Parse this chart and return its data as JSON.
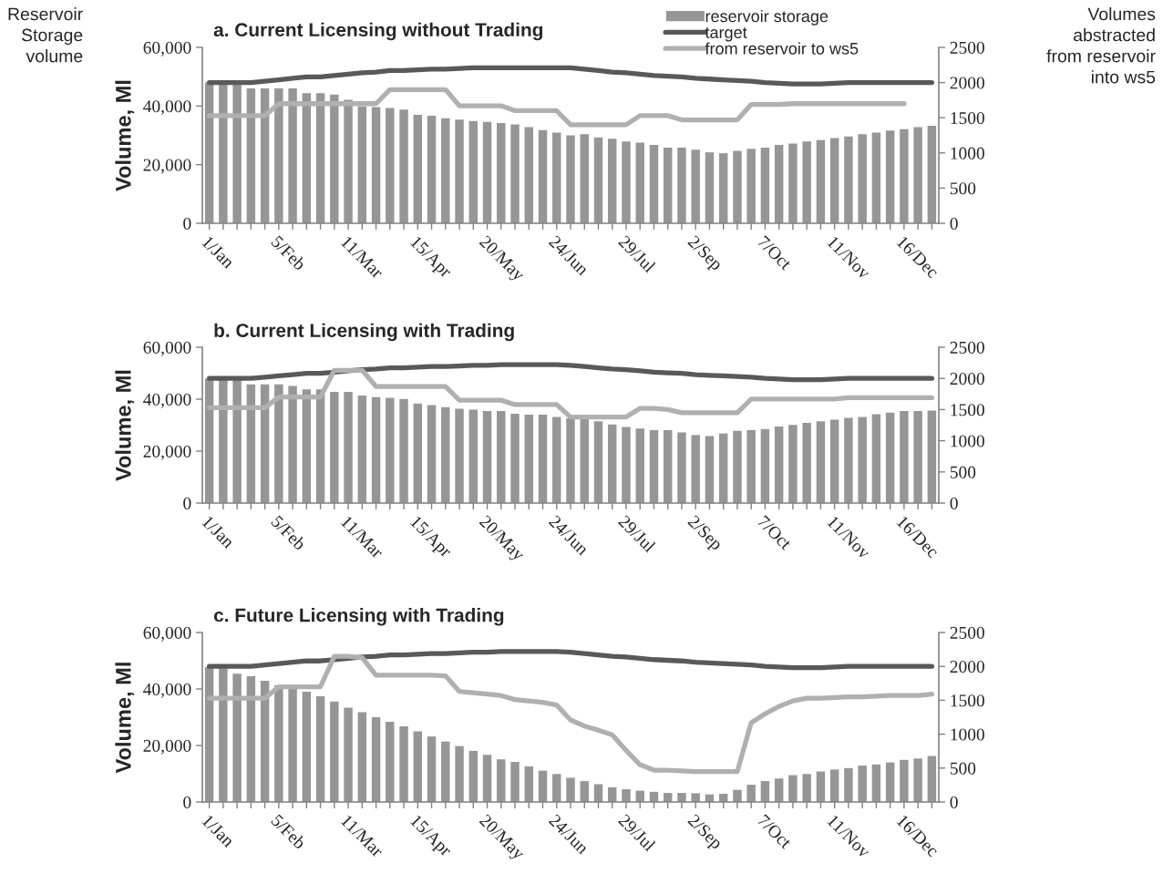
{
  "chart_data": [
    {
      "type": "bar",
      "title": "a. Current Licensing without Trading",
      "ylabel": "Volume, Ml",
      "annotations": [
        "Reservoir\nStorage\nvolume",
        "Volumes\nabstracted\nfrom reservoir\ninto ws5"
      ],
      "categories": [
        "1/Jan",
        null,
        null,
        null,
        null,
        "5/Feb",
        null,
        null,
        null,
        null,
        "11/Mar",
        null,
        null,
        null,
        null,
        "15/Apr",
        null,
        null,
        null,
        null,
        "20/May",
        null,
        null,
        null,
        null,
        "24/Jun",
        null,
        null,
        null,
        null,
        "29/Jul",
        null,
        null,
        null,
        null,
        "2/Sep",
        null,
        null,
        null,
        null,
        "7/Oct",
        null,
        null,
        null,
        null,
        "11/Nov",
        null,
        null,
        null,
        null,
        "16/Dec",
        null,
        null
      ],
      "series": [
        {
          "name": "reservoir storage",
          "color": "#969696",
          "values": [
            48000,
            48000,
            48000,
            46000,
            46000,
            46000,
            46000,
            44400,
            44400,
            43900,
            42100,
            39900,
            39600,
            39300,
            38800,
            37000,
            36700,
            35800,
            35400,
            34900,
            34600,
            34200,
            33700,
            32800,
            31800,
            30900,
            30000,
            30400,
            29300,
            28800,
            27900,
            27500,
            26700,
            25800,
            25800,
            25100,
            24200,
            23900,
            24700,
            25400,
            25800,
            26700,
            27200,
            27900,
            28400,
            29100,
            29600,
            30400,
            30900,
            31600,
            32100,
            32800,
            33300
          ]
        },
        {
          "name": "target",
          "type": "line",
          "axis": "y2",
          "color": "#595959",
          "values": [
            2000,
            2000,
            2000,
            2000,
            2020,
            2040,
            2060,
            2080,
            2080,
            2100,
            2120,
            2140,
            2150,
            2170,
            2170,
            2180,
            2190,
            2190,
            2200,
            2210,
            2210,
            2210,
            2210,
            2210,
            2210,
            2210,
            2210,
            2190,
            2170,
            2150,
            2140,
            2120,
            2100,
            2090,
            2080,
            2060,
            2050,
            2040,
            2030,
            2020,
            2000,
            1990,
            1980,
            1980,
            1980,
            1990,
            2000,
            2000,
            2000,
            2000,
            2000,
            2000,
            2000
          ]
        },
        {
          "name": "from reservoir to ws5",
          "type": "line",
          "axis": "y2",
          "color": "#b0b0b0",
          "values": [
            1530,
            1530,
            1530,
            1530,
            1530,
            1700,
            1700,
            1700,
            1700,
            1700,
            1700,
            1700,
            1700,
            1900,
            1900,
            1900,
            1900,
            1900,
            1670,
            1670,
            1670,
            1670,
            1600,
            1600,
            1600,
            1600,
            1400,
            1400,
            1400,
            1400,
            1400,
            1530,
            1530,
            1530,
            1470,
            1470,
            1470,
            1470,
            1470,
            1690,
            1690,
            1690,
            1700,
            1700,
            1700,
            1700,
            1700,
            1700,
            1700,
            1700,
            1700,
            null,
            null
          ]
        }
      ],
      "ylim": [
        0,
        60000
      ],
      "yticks": [
        0,
        {
          "value": 20000,
          "label": "20,000"
        },
        {
          "value": 40000,
          "label": "40,000"
        },
        {
          "value": 60000,
          "label": "60,000"
        }
      ],
      "y2lim": [
        0,
        2500
      ],
      "y2ticks": [
        0,
        500,
        1000,
        1500,
        2000,
        2500
      ],
      "legend": "top right",
      "grid": false,
      "line_style": "solid",
      "marker": "none"
    },
    {
      "type": "bar",
      "title": "b. Current Licensing with Trading",
      "ylabel": "Volume, Ml",
      "categories": [
        "1/Jan",
        null,
        null,
        null,
        null,
        "5/Feb",
        null,
        null,
        null,
        null,
        "11/Mar",
        null,
        null,
        null,
        null,
        "15/Apr",
        null,
        null,
        null,
        null,
        "20/May",
        null,
        null,
        null,
        null,
        "24/Jun",
        null,
        null,
        null,
        null,
        "29/Jul",
        null,
        null,
        null,
        null,
        "2/Sep",
        null,
        null,
        null,
        null,
        "7/Oct",
        null,
        null,
        null,
        null,
        "11/Nov",
        null,
        null,
        null,
        null,
        "16/Dec",
        null,
        null
      ],
      "series": [
        {
          "color": "#969696",
          "values": [
            48000,
            48000,
            48000,
            45700,
            45700,
            45700,
            45100,
            43800,
            43800,
            42800,
            42800,
            41400,
            40800,
            40500,
            40100,
            38300,
            37700,
            36900,
            36300,
            36000,
            35400,
            35400,
            34400,
            34000,
            34000,
            33200,
            32600,
            32400,
            31500,
            30300,
            29300,
            28700,
            28100,
            28100,
            27200,
            26200,
            25800,
            26800,
            27800,
            28100,
            28500,
            29500,
            30100,
            30900,
            31500,
            32100,
            32800,
            33200,
            34200,
            34800,
            35400,
            35400,
            35600
          ]
        },
        {
          "type": "line",
          "axis": "y2",
          "color": "#595959",
          "values": [
            2000,
            2000,
            2000,
            2000,
            2020,
            2040,
            2060,
            2080,
            2080,
            2100,
            2120,
            2140,
            2150,
            2170,
            2170,
            2180,
            2190,
            2190,
            2200,
            2210,
            2210,
            2220,
            2220,
            2220,
            2220,
            2220,
            2210,
            2190,
            2170,
            2150,
            2140,
            2120,
            2100,
            2090,
            2080,
            2060,
            2050,
            2040,
            2030,
            2020,
            2000,
            1990,
            1980,
            1980,
            1980,
            1990,
            2000,
            2000,
            2000,
            2000,
            2000,
            2000,
            2000
          ]
        },
        {
          "type": "line",
          "axis": "y2",
          "color": "#b0b0b0",
          "values": [
            1530,
            1530,
            1530,
            1530,
            1530,
            1700,
            1700,
            1700,
            1700,
            2130,
            2130,
            2130,
            1870,
            1870,
            1870,
            1870,
            1870,
            1870,
            1650,
            1650,
            1650,
            1650,
            1580,
            1580,
            1580,
            1580,
            1380,
            1380,
            1380,
            1380,
            1380,
            1520,
            1520,
            1500,
            1450,
            1450,
            1450,
            1450,
            1450,
            1670,
            1670,
            1670,
            1670,
            1670,
            1670,
            1670,
            1690,
            1690,
            1690,
            1690,
            1690,
            1690,
            1690
          ]
        }
      ],
      "ylim": [
        0,
        60000
      ],
      "yticks": [
        0,
        {
          "value": 20000,
          "label": "20,000"
        },
        {
          "value": 40000,
          "label": "40,000"
        },
        {
          "value": 60000,
          "label": "60,000"
        }
      ],
      "y2lim": [
        0,
        2500
      ],
      "y2ticks": [
        0,
        500,
        1000,
        1500,
        2000,
        2500
      ],
      "grid": false,
      "line_style": "solid",
      "marker": "none"
    },
    {
      "type": "bar",
      "title": "c. Future Licensing with Trading",
      "ylabel": "Volume, Ml",
      "categories": [
        "1/Jan",
        null,
        null,
        null,
        null,
        "5/Feb",
        null,
        null,
        null,
        null,
        "11/Mar",
        null,
        null,
        null,
        null,
        "15/Apr",
        null,
        null,
        null,
        null,
        "20/May",
        null,
        null,
        null,
        null,
        "24/Jun",
        null,
        null,
        null,
        null,
        "29/Jul",
        null,
        null,
        null,
        null,
        "2/Sep",
        null,
        null,
        null,
        null,
        "7/Oct",
        null,
        null,
        null,
        null,
        "11/Nov",
        null,
        null,
        null,
        null,
        "16/Dec",
        null,
        null
      ],
      "series": [
        {
          "color": "#969696",
          "values": [
            47800,
            47800,
            45400,
            44500,
            42900,
            41300,
            40100,
            39000,
            37400,
            35600,
            33400,
            31800,
            30000,
            28400,
            26800,
            25000,
            23200,
            21400,
            19800,
            18100,
            16700,
            15100,
            14200,
            12600,
            11100,
            9900,
            8600,
            7400,
            6300,
            5200,
            4500,
            4000,
            3600,
            3200,
            3200,
            3100,
            2700,
            2900,
            4300,
            6100,
            7400,
            8300,
            9500,
            9900,
            10800,
            11500,
            12000,
            12900,
            13300,
            14000,
            14900,
            15400,
            16300
          ]
        },
        {
          "type": "line",
          "axis": "y2",
          "color": "#595959",
          "values": [
            2000,
            2000,
            2000,
            2000,
            2020,
            2040,
            2060,
            2080,
            2080,
            2100,
            2120,
            2140,
            2150,
            2170,
            2170,
            2180,
            2190,
            2190,
            2200,
            2210,
            2210,
            2220,
            2220,
            2220,
            2220,
            2220,
            2210,
            2190,
            2170,
            2150,
            2140,
            2120,
            2100,
            2090,
            2080,
            2060,
            2050,
            2040,
            2030,
            2020,
            2000,
            1990,
            1980,
            1980,
            1980,
            1990,
            2000,
            2000,
            2000,
            2000,
            2000,
            2000,
            2000
          ]
        },
        {
          "type": "line",
          "axis": "y2",
          "color": "#b0b0b0",
          "values": [
            1530,
            1530,
            1530,
            1530,
            1530,
            1700,
            1700,
            1700,
            1700,
            2150,
            2150,
            2130,
            1870,
            1870,
            1870,
            1870,
            1870,
            1860,
            1630,
            1610,
            1590,
            1570,
            1510,
            1490,
            1470,
            1430,
            1210,
            1120,
            1060,
            990,
            760,
            550,
            470,
            470,
            460,
            450,
            450,
            450,
            450,
            1170,
            1300,
            1410,
            1490,
            1530,
            1530,
            1540,
            1550,
            1550,
            1560,
            1570,
            1570,
            1570,
            1590
          ]
        }
      ],
      "ylim": [
        0,
        60000
      ],
      "yticks": [
        0,
        {
          "value": 20000,
          "label": "20,000"
        },
        {
          "value": 40000,
          "label": "40,000"
        },
        {
          "value": 60000,
          "label": "60,000"
        }
      ],
      "y2lim": [
        0,
        2500
      ],
      "y2ticks": [
        0,
        500,
        1000,
        1500,
        2000,
        2500
      ],
      "grid": false,
      "line_style": "solid",
      "marker": "none"
    }
  ]
}
